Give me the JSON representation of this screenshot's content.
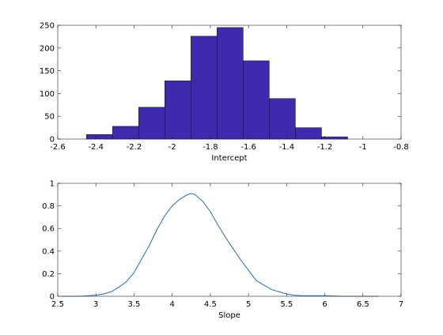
{
  "chart_data": [
    {
      "type": "bar",
      "xlabel": "Intercept",
      "ylabel": "",
      "xlim": [
        -2.6,
        -0.8
      ],
      "ylim": [
        0,
        250
      ],
      "xticks": [
        -2.6,
        -2.4,
        -2.2,
        -2,
        -1.8,
        -1.6,
        -1.4,
        -1.2,
        -1,
        -0.8
      ],
      "yticks": [
        0,
        50,
        100,
        150,
        200,
        250
      ],
      "bin_edges": [
        -2.45,
        -2.313,
        -2.176,
        -2.039,
        -1.902,
        -1.765,
        -1.628,
        -1.491,
        -1.354,
        -1.217,
        -1.08
      ],
      "values": [
        10,
        28,
        70,
        128,
        226,
        245,
        172,
        89,
        25,
        5
      ]
    },
    {
      "type": "line",
      "xlabel": "Slope",
      "ylabel": "",
      "xlim": [
        2.5,
        7
      ],
      "ylim": [
        0,
        1
      ],
      "xticks": [
        2.5,
        3,
        3.5,
        4,
        4.5,
        5,
        5.5,
        6,
        6.5,
        7
      ],
      "yticks": [
        0,
        0.2,
        0.4,
        0.6,
        0.8,
        1
      ],
      "x": [
        2.55,
        2.8,
        3.0,
        3.1,
        3.2,
        3.3,
        3.4,
        3.5,
        3.6,
        3.7,
        3.8,
        3.9,
        4.0,
        4.1,
        4.2,
        4.25,
        4.3,
        4.4,
        4.5,
        4.6,
        4.7,
        4.8,
        4.9,
        5.0,
        5.1,
        5.2,
        5.3,
        5.4,
        5.5,
        5.6,
        5.7,
        5.8,
        6.0,
        6.2,
        6.4,
        6.7
      ],
      "y": [
        0.0,
        0.0,
        0.01,
        0.02,
        0.04,
        0.08,
        0.13,
        0.21,
        0.33,
        0.45,
        0.59,
        0.71,
        0.8,
        0.86,
        0.9,
        0.91,
        0.9,
        0.84,
        0.75,
        0.63,
        0.52,
        0.42,
        0.32,
        0.23,
        0.14,
        0.1,
        0.06,
        0.04,
        0.02,
        0.01,
        0.005,
        0.005,
        0.005,
        0.0,
        0.0,
        0.0
      ]
    }
  ]
}
